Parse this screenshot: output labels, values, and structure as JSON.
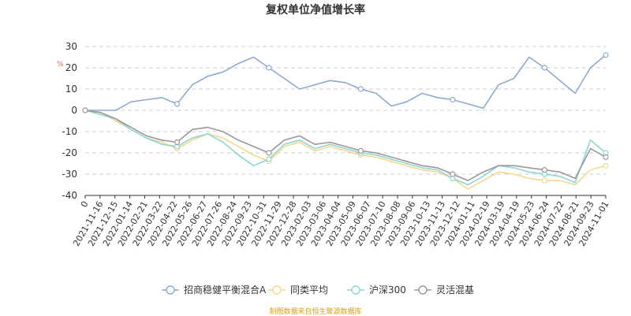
{
  "chart_data": {
    "type": "line",
    "title": "复权单位净值增长率",
    "ylabel": "%",
    "ylim": [
      -40,
      30
    ],
    "y_ticks": [
      30,
      20,
      10,
      0,
      -10,
      -20,
      -30,
      -40
    ],
    "x_first_tick": "0",
    "x_ticks": [
      "2021-11-16",
      "2021-12-15",
      "2022-01-14",
      "2022-02-21",
      "2022-03-22",
      "2022-04-22",
      "2022-05-26",
      "2022-06-27",
      "2022-07-26",
      "2022-08-24",
      "2022-09-23",
      "2022-10-31",
      "2022-11-29",
      "2022-12-28",
      "2023-02-03",
      "2023-03-06",
      "2023-04-04",
      "2023-05-09",
      "2023-06-07",
      "2023-07-10",
      "2023-08-08",
      "2023-09-06",
      "2023-10-13",
      "2023-11-13",
      "2023-12-12",
      "2024-01-11",
      "2024-02-19",
      "2024-03-19",
      "2024-04-19",
      "2024-05-23",
      "2024-06-24",
      "2024-07-22",
      "2024-08-21",
      "2024-09-23",
      "2024-11-01"
    ],
    "grid": true,
    "legend_position": "bottom",
    "series": [
      {
        "name": "招商稳健平衡混合A",
        "color": "#8fa9d1",
        "values": [
          0,
          0,
          0,
          4,
          5,
          6,
          3,
          12,
          16,
          18,
          22,
          25,
          20,
          15,
          10,
          12,
          14,
          13,
          10,
          8,
          2,
          4,
          8,
          6,
          5,
          3,
          1,
          12,
          15,
          25,
          20,
          14,
          8,
          20,
          26
        ]
      },
      {
        "name": "同类平均",
        "color": "#f5d78e",
        "values": [
          0,
          -1,
          -5,
          -9,
          -13,
          -15,
          -18,
          -14,
          -11,
          -13,
          -17,
          -21,
          -24,
          -17,
          -15,
          -19,
          -17,
          -19,
          -21,
          -22,
          -24,
          -26,
          -28,
          -29,
          -32,
          -37,
          -33,
          -29,
          -30,
          -32,
          -33,
          -33,
          -35,
          -28,
          -26
        ]
      },
      {
        "name": "沪深300",
        "color": "#8ed6d6",
        "values": [
          0,
          -2,
          -4,
          -9,
          -13,
          -16,
          -17,
          -13,
          -11,
          -15,
          -21,
          -26,
          -23,
          -16,
          -14,
          -18,
          -16,
          -18,
          -20,
          -21,
          -23,
          -25,
          -27,
          -28,
          -32,
          -35,
          -31,
          -26,
          -27,
          -29,
          -30,
          -31,
          -34,
          -14,
          -20
        ]
      },
      {
        "name": "灵活混基",
        "color": "#999999",
        "values": [
          0,
          -1,
          -4,
          -8,
          -12,
          -14,
          -15,
          -9,
          -8,
          -10,
          -14,
          -17,
          -20,
          -14,
          -12,
          -16,
          -15,
          -17,
          -19,
          -20,
          -22,
          -24,
          -26,
          -27,
          -30,
          -33,
          -29,
          -26,
          -26,
          -27,
          -28,
          -29,
          -32,
          -18,
          -22
        ]
      }
    ]
  },
  "source_note": "制图数据来自恒生聚源数据库"
}
